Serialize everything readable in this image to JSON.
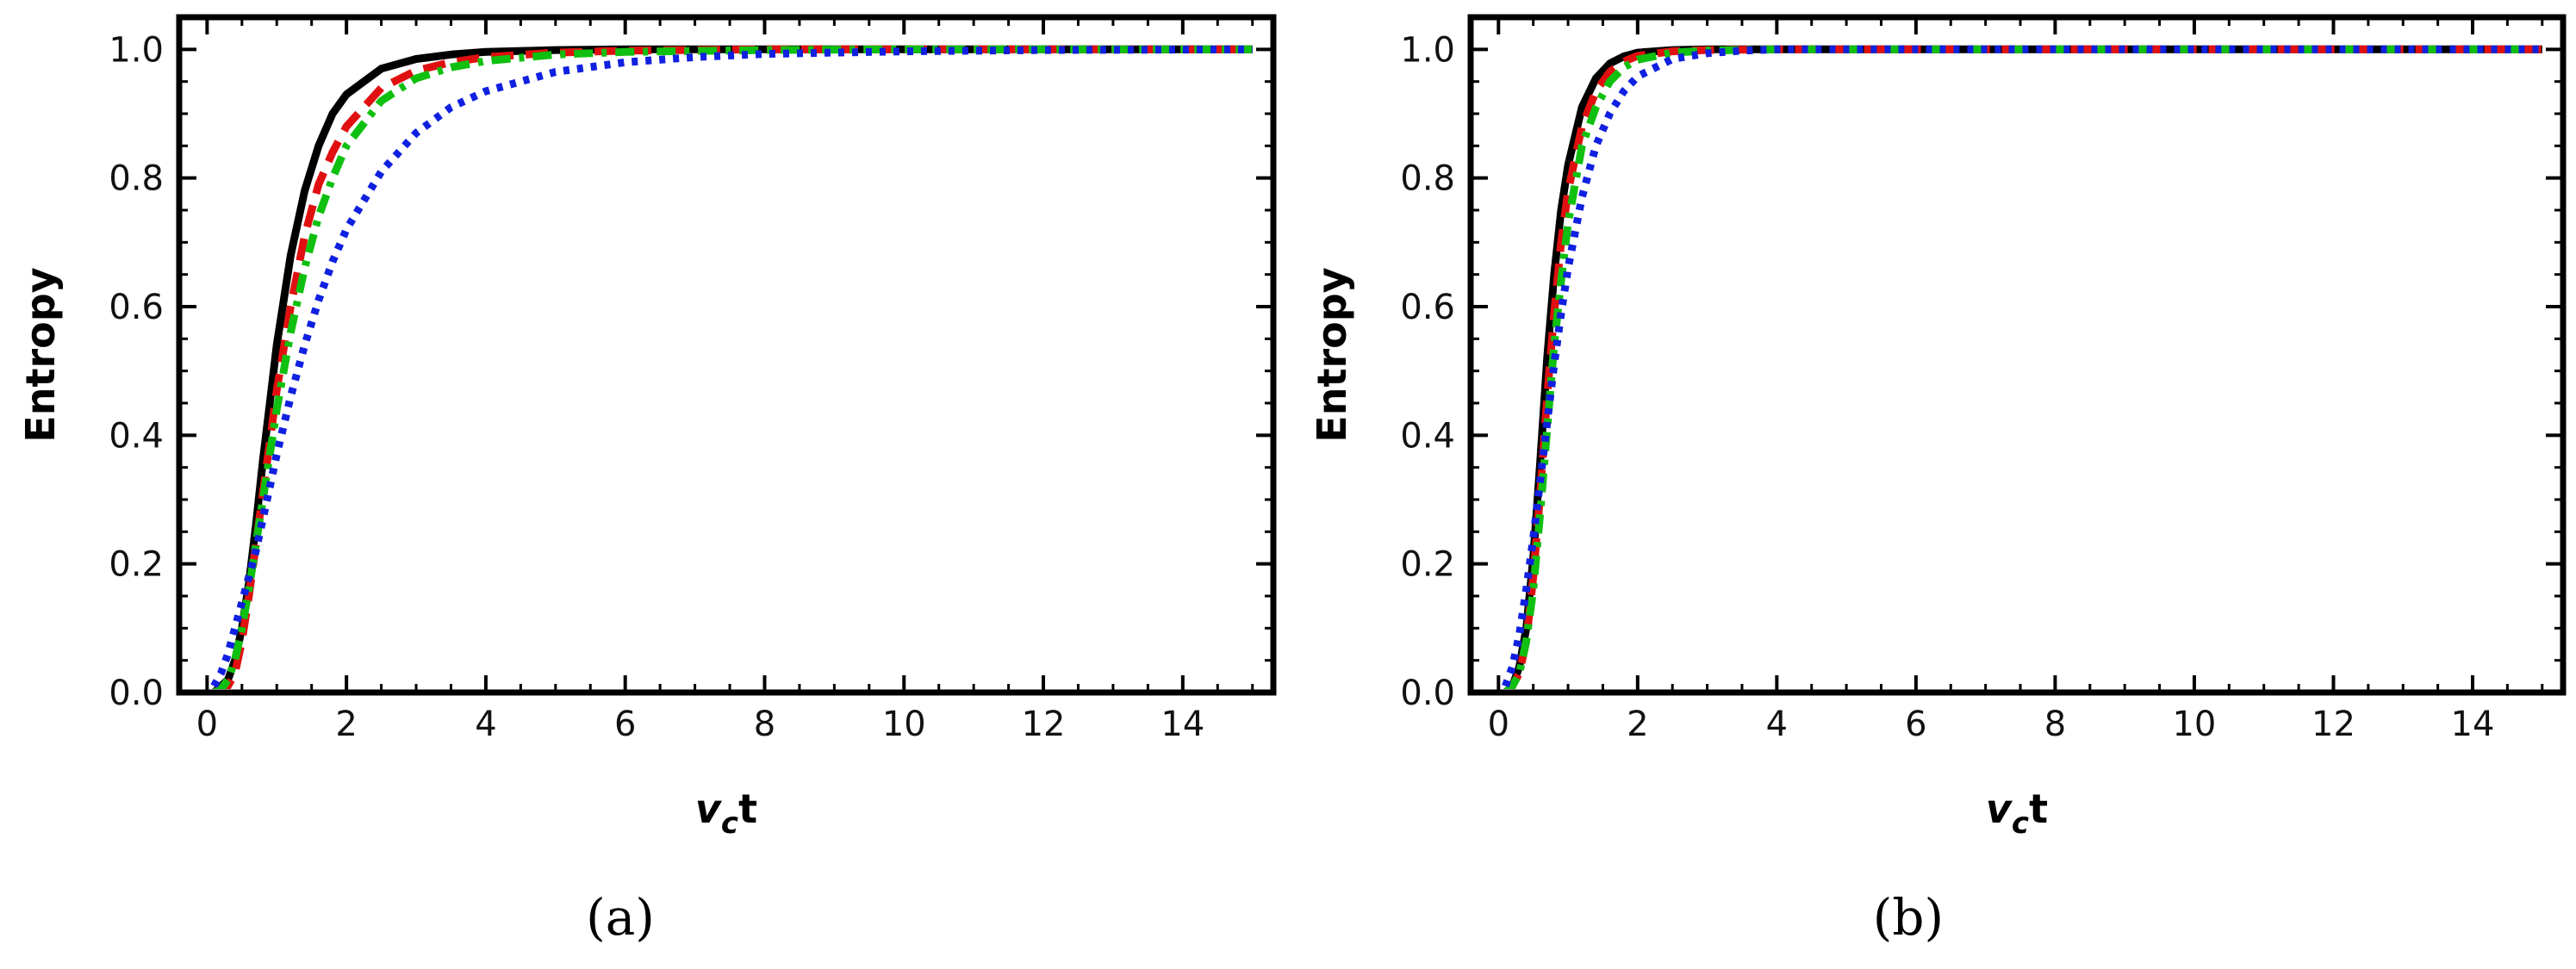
{
  "chart_data": [
    {
      "type": "line",
      "panel_label": "(a)",
      "xlabel": {
        "main": "v",
        "subscript": "c",
        "suffix": "t"
      },
      "ylabel": "Entropy",
      "xlim": [
        -0.4,
        15.3
      ],
      "ylim": [
        0,
        1.05
      ],
      "xticks": [
        "0",
        "2",
        "4",
        "6",
        "8",
        "10",
        "12",
        "14"
      ],
      "yticks": [
        "0.0",
        "0.2",
        "0.4",
        "0.6",
        "0.8",
        "1.0"
      ],
      "grid": false,
      "series": [
        {
          "color": "#000000",
          "dash": "solid",
          "points": [
            [
              0.1,
              0.0
            ],
            [
              0.2,
              0.01
            ],
            [
              0.3,
              0.02
            ],
            [
              0.4,
              0.05
            ],
            [
              0.5,
              0.1
            ],
            [
              0.6,
              0.17
            ],
            [
              0.7,
              0.26
            ],
            [
              0.8,
              0.36
            ],
            [
              0.9,
              0.45
            ],
            [
              1.0,
              0.54
            ],
            [
              1.2,
              0.68
            ],
            [
              1.4,
              0.78
            ],
            [
              1.6,
              0.85
            ],
            [
              1.8,
              0.9
            ],
            [
              2.0,
              0.93
            ],
            [
              2.5,
              0.97
            ],
            [
              3.0,
              0.985
            ],
            [
              3.5,
              0.992
            ],
            [
              4.0,
              0.996
            ],
            [
              5.0,
              0.999
            ],
            [
              6.0,
              1.0
            ],
            [
              15.0,
              1.0
            ]
          ]
        },
        {
          "color": "#e01010",
          "dash": "dashed",
          "points": [
            [
              0.1,
              0.0
            ],
            [
              0.2,
              0.005
            ],
            [
              0.3,
              0.01
            ],
            [
              0.4,
              0.03
            ],
            [
              0.5,
              0.08
            ],
            [
              0.6,
              0.15
            ],
            [
              0.7,
              0.23
            ],
            [
              0.8,
              0.31
            ],
            [
              0.9,
              0.39
            ],
            [
              1.0,
              0.47
            ],
            [
              1.2,
              0.6
            ],
            [
              1.4,
              0.71
            ],
            [
              1.6,
              0.79
            ],
            [
              1.8,
              0.84
            ],
            [
              2.0,
              0.88
            ],
            [
              2.5,
              0.94
            ],
            [
              3.0,
              0.967
            ],
            [
              3.5,
              0.98
            ],
            [
              4.0,
              0.988
            ],
            [
              5.0,
              0.995
            ],
            [
              6.0,
              0.998
            ],
            [
              8.0,
              1.0
            ],
            [
              15.0,
              1.0
            ]
          ]
        },
        {
          "color": "#10c010",
          "dash": "dashdot",
          "points": [
            [
              0.1,
              0.0
            ],
            [
              0.2,
              0.005
            ],
            [
              0.3,
              0.02
            ],
            [
              0.4,
              0.05
            ],
            [
              0.5,
              0.1
            ],
            [
              0.6,
              0.16
            ],
            [
              0.7,
              0.23
            ],
            [
              0.8,
              0.3
            ],
            [
              0.9,
              0.37
            ],
            [
              1.0,
              0.44
            ],
            [
              1.2,
              0.56
            ],
            [
              1.4,
              0.66
            ],
            [
              1.6,
              0.74
            ],
            [
              1.8,
              0.8
            ],
            [
              2.0,
              0.85
            ],
            [
              2.5,
              0.92
            ],
            [
              3.0,
              0.955
            ],
            [
              3.5,
              0.972
            ],
            [
              4.0,
              0.982
            ],
            [
              5.0,
              0.992
            ],
            [
              6.0,
              0.996
            ],
            [
              8.0,
              0.999
            ],
            [
              10.0,
              1.0
            ],
            [
              15.0,
              1.0
            ]
          ]
        },
        {
          "color": "#1020e0",
          "dash": "dotted",
          "points": [
            [
              0.1,
              0.01
            ],
            [
              0.2,
              0.03
            ],
            [
              0.3,
              0.06
            ],
            [
              0.4,
              0.1
            ],
            [
              0.5,
              0.14
            ],
            [
              0.6,
              0.18
            ],
            [
              0.7,
              0.22
            ],
            [
              0.8,
              0.27
            ],
            [
              0.9,
              0.32
            ],
            [
              1.0,
              0.37
            ],
            [
              1.2,
              0.46
            ],
            [
              1.4,
              0.54
            ],
            [
              1.6,
              0.61
            ],
            [
              1.8,
              0.67
            ],
            [
              2.0,
              0.72
            ],
            [
              2.5,
              0.81
            ],
            [
              3.0,
              0.87
            ],
            [
              3.5,
              0.91
            ],
            [
              4.0,
              0.935
            ],
            [
              5.0,
              0.965
            ],
            [
              6.0,
              0.98
            ],
            [
              7.0,
              0.988
            ],
            [
              8.0,
              0.993
            ],
            [
              10.0,
              0.997
            ],
            [
              12.0,
              0.999
            ],
            [
              15.0,
              1.0
            ]
          ]
        }
      ]
    },
    {
      "type": "line",
      "panel_label": "(b)",
      "xlabel": {
        "main": "v",
        "subscript": "c",
        "suffix": "t"
      },
      "ylabel": "Entropy",
      "xlim": [
        -0.4,
        15.3
      ],
      "ylim": [
        0,
        1.05
      ],
      "xticks": [
        "0",
        "2",
        "4",
        "6",
        "8",
        "10",
        "12",
        "14"
      ],
      "yticks": [
        "0.0",
        "0.2",
        "0.4",
        "0.6",
        "0.8",
        "1.0"
      ],
      "grid": false,
      "series": [
        {
          "color": "#000000",
          "dash": "solid",
          "points": [
            [
              0.1,
              0.0
            ],
            [
              0.2,
              0.01
            ],
            [
              0.3,
              0.04
            ],
            [
              0.4,
              0.1
            ],
            [
              0.5,
              0.21
            ],
            [
              0.6,
              0.36
            ],
            [
              0.7,
              0.52
            ],
            [
              0.8,
              0.65
            ],
            [
              0.9,
              0.75
            ],
            [
              1.0,
              0.82
            ],
            [
              1.2,
              0.91
            ],
            [
              1.4,
              0.955
            ],
            [
              1.6,
              0.978
            ],
            [
              1.8,
              0.989
            ],
            [
              2.0,
              0.995
            ],
            [
              2.5,
              0.999
            ],
            [
              3.0,
              1.0
            ],
            [
              15.0,
              1.0
            ]
          ]
        },
        {
          "color": "#e01010",
          "dash": "dashed",
          "points": [
            [
              0.1,
              0.0
            ],
            [
              0.2,
              0.01
            ],
            [
              0.3,
              0.03
            ],
            [
              0.4,
              0.08
            ],
            [
              0.5,
              0.18
            ],
            [
              0.6,
              0.31
            ],
            [
              0.7,
              0.46
            ],
            [
              0.8,
              0.59
            ],
            [
              0.9,
              0.7
            ],
            [
              1.0,
              0.78
            ],
            [
              1.2,
              0.88
            ],
            [
              1.4,
              0.935
            ],
            [
              1.6,
              0.965
            ],
            [
              1.8,
              0.981
            ],
            [
              2.0,
              0.99
            ],
            [
              2.5,
              0.997
            ],
            [
              3.0,
              0.999
            ],
            [
              4.0,
              1.0
            ],
            [
              15.0,
              1.0
            ]
          ]
        },
        {
          "color": "#10c010",
          "dash": "dashdot",
          "points": [
            [
              0.1,
              0.0
            ],
            [
              0.2,
              0.01
            ],
            [
              0.3,
              0.03
            ],
            [
              0.4,
              0.08
            ],
            [
              0.5,
              0.16
            ],
            [
              0.6,
              0.28
            ],
            [
              0.7,
              0.41
            ],
            [
              0.8,
              0.54
            ],
            [
              0.9,
              0.64
            ],
            [
              1.0,
              0.73
            ],
            [
              1.2,
              0.85
            ],
            [
              1.4,
              0.91
            ],
            [
              1.6,
              0.95
            ],
            [
              1.8,
              0.972
            ],
            [
              2.0,
              0.984
            ],
            [
              2.5,
              0.995
            ],
            [
              3.0,
              0.998
            ],
            [
              4.0,
              1.0
            ],
            [
              15.0,
              1.0
            ]
          ]
        },
        {
          "color": "#1020e0",
          "dash": "dotted",
          "points": [
            [
              0.1,
              0.01
            ],
            [
              0.2,
              0.04
            ],
            [
              0.3,
              0.09
            ],
            [
              0.4,
              0.16
            ],
            [
              0.5,
              0.24
            ],
            [
              0.6,
              0.33
            ],
            [
              0.7,
              0.42
            ],
            [
              0.8,
              0.51
            ],
            [
              0.9,
              0.59
            ],
            [
              1.0,
              0.66
            ],
            [
              1.2,
              0.77
            ],
            [
              1.4,
              0.85
            ],
            [
              1.6,
              0.9
            ],
            [
              1.8,
              0.935
            ],
            [
              2.0,
              0.958
            ],
            [
              2.5,
              0.985
            ],
            [
              3.0,
              0.994
            ],
            [
              3.5,
              0.998
            ],
            [
              4.0,
              1.0
            ],
            [
              15.0,
              1.0
            ]
          ]
        }
      ]
    }
  ]
}
